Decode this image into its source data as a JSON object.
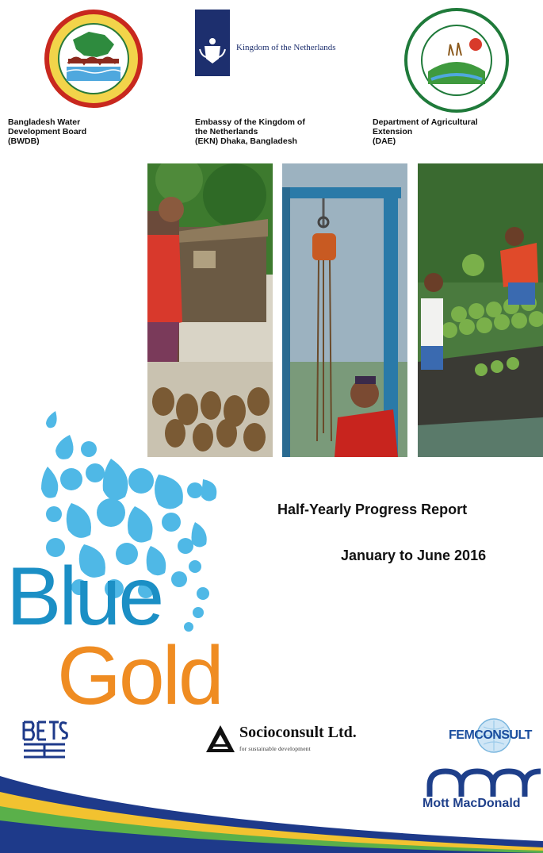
{
  "logos": {
    "netherlands_wordmark": "Kingdom of the Netherlands",
    "bwdb_emblem": "bwdb-emblem",
    "dae_emblem": "dae-emblem"
  },
  "orgs": [
    {
      "lines": [
        "Bangladesh Water",
        "Development Board",
        "(BWDB)"
      ]
    },
    {
      "lines": [
        "Embassy of the Kingdom of",
        "the Netherlands",
        "(EKN) Dhaka, Bangladesh"
      ]
    },
    {
      "lines": [
        "Department of Agricultural",
        "Extension",
        "(DAE)"
      ]
    }
  ],
  "report": {
    "title": "Half-Yearly Progress Report",
    "period": "January to June 2016"
  },
  "brand": {
    "word1": "Blue",
    "word2": "Gold",
    "blue_color": "#1b8fc5",
    "gold_color": "#ef8c22",
    "drop_color": "#4fb8e6"
  },
  "partners": {
    "bets": "BETS",
    "socioconsult_name": "Socioconsult Ltd.",
    "socioconsult_tagline": "for sustainable development",
    "femconsult": "FEMCONSULT",
    "mott_macdonald": "Mott MacDonald"
  }
}
